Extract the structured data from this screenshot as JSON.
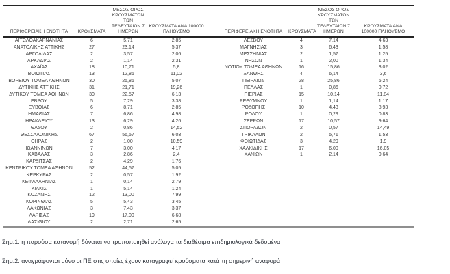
{
  "table": {
    "headers": {
      "region": "ΠΕΡΙΦΕΡΕΙΑΚΗ ΕΝΟΤΗΤΑ",
      "cases": "ΚΡΟΥΣΜΑΤΑ",
      "avg7_lines": [
        "ΜΕΣΟΣ ΟΡΟΣ",
        "ΚΡΟΥΣΜΑΤΩΝ ΤΩΝ",
        "ΤΕΛΕΥΤΑΙΩΝ 7",
        "ΗΜΕΡΩΝ"
      ],
      "per100k_left_lines": [
        "ΚΡΟΥΣΜΑΤΑ ΑΝΑ 100000",
        "ΠΛΗΘΥΣΜΟ"
      ],
      "per100k_right_lines": [
        "ΚΡΟΥΣΜΑΤΑ ΑΝΑ",
        "100000 ΠΛΗΘΥΣΜΟ"
      ]
    },
    "left_rows": [
      [
        "ΑΙΤΩΛΟΑΚΑΡΝΑΝΙΑΣ",
        "6",
        "5,71",
        "2,85"
      ],
      [
        "ΑΝΑΤΟΛΙΚΗΣ ΑΤΤΙΚΗΣ",
        "27",
        "23,14",
        "5,37"
      ],
      [
        "ΑΡΓΟΛΙΔΑΣ",
        "2",
        "3,57",
        "2,06"
      ],
      [
        "ΑΡΚΑΔΙΑΣ",
        "2",
        "1,14",
        "2,31"
      ],
      [
        "ΑΧΑΪΑΣ",
        "18",
        "10,71",
        "5,8"
      ],
      [
        "ΒΟΙΩΤΙΑΣ",
        "13",
        "12,86",
        "11,02"
      ],
      [
        "ΒΟΡΕΙΟΥ ΤΟΜΕΑ ΑΘΗΝΩΝ",
        "30",
        "25,86",
        "5,07"
      ],
      [
        "ΔΥΤΙΚΗΣ ΑΤΤΙΚΗΣ",
        "31",
        "21,71",
        "19,26"
      ],
      [
        "ΔΥΤΙΚΟΥ ΤΟΜΕΑ ΑΘΗΝΩΝ",
        "30",
        "22,57",
        "6,13"
      ],
      [
        "ΕΒΡΟΥ",
        "5",
        "7,29",
        "3,38"
      ],
      [
        "ΕΥΒΟΙΑΣ",
        "6",
        "8,71",
        "2,85"
      ],
      [
        "ΗΜΑΘΙΑΣ",
        "7",
        "6,86",
        "4,98"
      ],
      [
        "ΗΡΑΚΛΕΙΟΥ",
        "13",
        "6,29",
        "4,26"
      ],
      [
        "ΘΑΣΟΥ",
        "2",
        "0,86",
        "14,52"
      ],
      [
        "ΘΕΣΣΑΛΟΝΙΚΗΣ",
        "67",
        "56,57",
        "6,03"
      ],
      [
        "ΘΗΡΑΣ",
        "2",
        "1,00",
        "10,59"
      ],
      [
        "ΙΩΑΝΝΙΝΩΝ",
        "7",
        "3,00",
        "4,17"
      ],
      [
        "ΚΑΒΑΛΑΣ",
        "3",
        "2,86",
        "2,4"
      ],
      [
        "ΚΑΡΔΙΤΣΑΣ",
        "2",
        "4,29",
        "1,76"
      ],
      [
        "ΚΕΝΤΡΙΚΟΥ ΤΟΜΕΑ ΑΘΗΝΩΝ",
        "52",
        "44,57",
        "5,05"
      ],
      [
        "ΚΕΡΚΥΡΑΣ",
        "2",
        "0,57",
        "1,92"
      ],
      [
        "ΚΕΦΑΛΛΗΝΙΑΣ",
        "1",
        "0,14",
        "2,79"
      ],
      [
        "ΚΙΛΚΙΣ",
        "1",
        "5,14",
        "1,24"
      ],
      [
        "ΚΟΖΑΝΗΣ",
        "12",
        "13,00",
        "7,99"
      ],
      [
        "ΚΟΡΙΝΘΙΑΣ",
        "5",
        "5,43",
        "3,45"
      ],
      [
        "ΛΑΚΩΝΙΑΣ",
        "3",
        "7,43",
        "3,37"
      ],
      [
        "ΛΑΡΙΣΑΣ",
        "19",
        "17,00",
        "6,68"
      ],
      [
        "ΛΑΣΙΘΙΟΥ",
        "2",
        "2,71",
        "2,65"
      ]
    ],
    "right_rows": [
      [
        "ΛΕΣΒΟΥ",
        "4",
        "7,14",
        "4,63"
      ],
      [
        "ΜΑΓΝΗΣΙΑΣ",
        "3",
        "6,43",
        "1,58"
      ],
      [
        "ΜΕΣΣΗΝΙΑΣ",
        "2",
        "1,57",
        "1,25"
      ],
      [
        "ΝΗΣΩΝ",
        "1",
        "2,00",
        "1,34"
      ],
      [
        "ΝΟΤΙΟΥ ΤΟΜΕΑ ΑΘΗΝΩΝ",
        "16",
        "15,86",
        "3,02"
      ],
      [
        "ΞΑΝΘΗΣ",
        "4",
        "6,14",
        "3,6"
      ],
      [
        "ΠΕΙΡΑΙΩΣ",
        "28",
        "25,86",
        "6,24"
      ],
      [
        "ΠΕΛΛΑΣ",
        "1",
        "0,86",
        "0,72"
      ],
      [
        "ΠΙΕΡΙΑΣ",
        "15",
        "10,14",
        "11,84"
      ],
      [
        "ΡΕΘΥΜΝΟΥ",
        "1",
        "1,14",
        "1,17"
      ],
      [
        "ΡΟΔΟΠΗΣ",
        "10",
        "4,43",
        "8,93"
      ],
      [
        "ΡΟΔΟΥ",
        "1",
        "0,29",
        "0,83"
      ],
      [
        "ΣΕΡΡΩΝ",
        "17",
        "10,57",
        "9,64"
      ],
      [
        "ΣΠΟΡΑΔΩΝ",
        "2",
        "0,57",
        "14,49"
      ],
      [
        "ΤΡΙΚΑΛΩΝ",
        "2",
        "5,71",
        "1,53"
      ],
      [
        "ΦΘΙΩΤΙΔΑΣ",
        "3",
        "4,29",
        "1,9"
      ],
      [
        "ΧΑΛΚΙΔΙΚΗΣ",
        "17",
        "6,00",
        "16,05"
      ],
      [
        "ΧΑΝΙΩΝ",
        "1",
        "2,14",
        "0,64"
      ]
    ]
  },
  "footnotes": [
    "Σημ.1: η παρούσα κατανομή δύναται να τροποποιηθεί ανάλογα τα διαθέσιμα επιδημιολογικά δεδομένα",
    "Σημ.2: αναγράφονται μόνο οι ΠΕ στις οποίες έχουν καταγραφεί κρούσματα κατά τη σημερινή αναφορά"
  ],
  "colors": {
    "table_text": "#3f3f3f",
    "rule_dark": "#242424",
    "rule_bottom_gray": "#8f8f8f",
    "footnote_text": "#31363e",
    "background": "#ffffff"
  }
}
